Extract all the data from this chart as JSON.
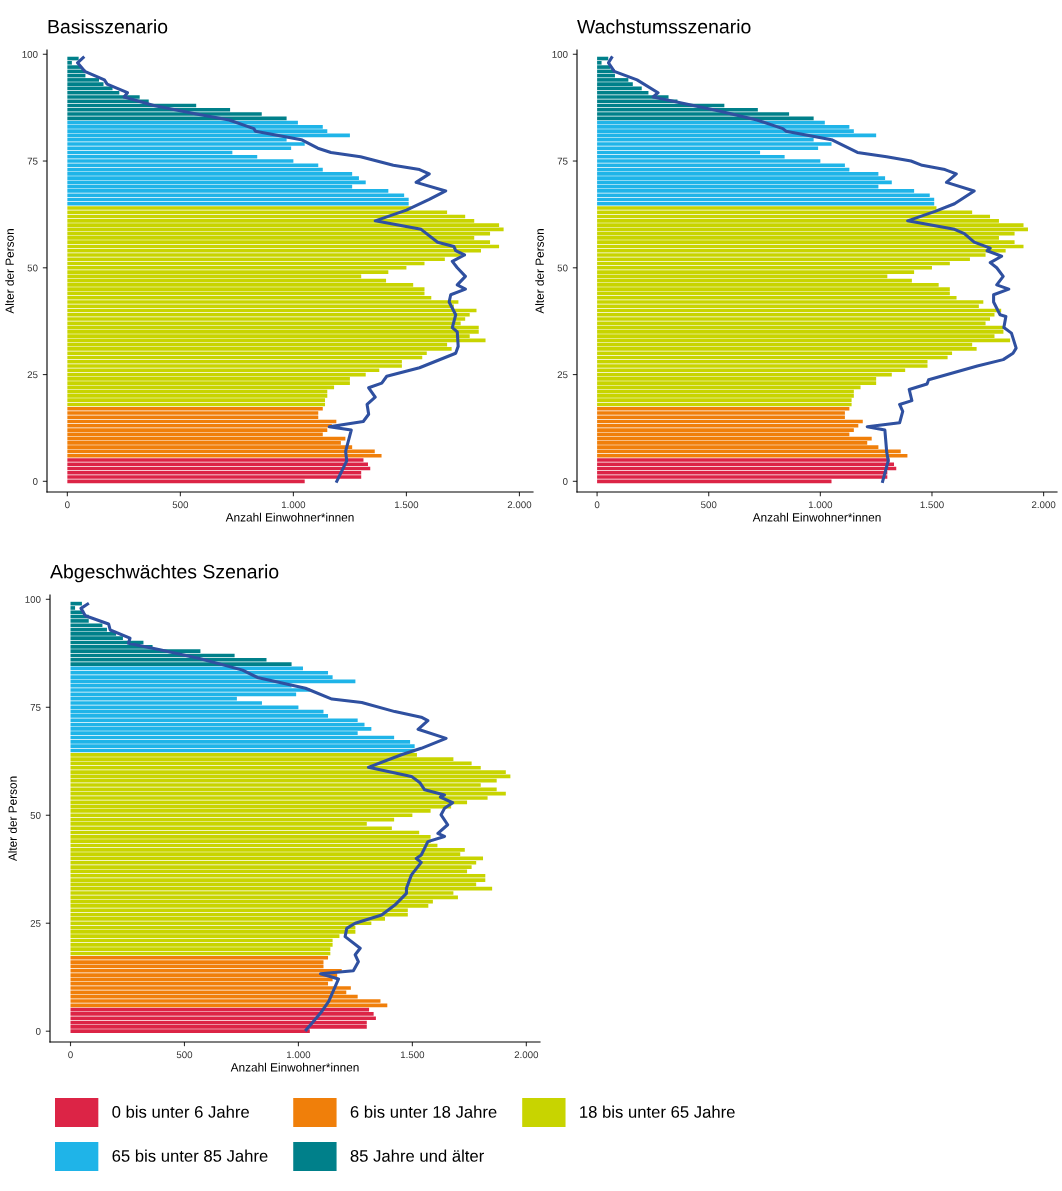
{
  "chart_data": [
    {
      "type": "bar",
      "orientation": "horizontal",
      "title": "Basisszenario",
      "xlabel": "Anzahl Einwohner*innen",
      "ylabel": "Alter der Person",
      "xlim": [
        -90,
        2060
      ],
      "xticks": [
        0,
        500,
        {
          "value": 1000,
          "label": "1.000"
        },
        {
          "value": 1500,
          "label": "1.500"
        },
        {
          "value": 2000,
          "label": "2.000"
        }
      ],
      "ylim": [
        -2.5,
        101
      ],
      "yticks": [
        0,
        25,
        50,
        75,
        100
      ],
      "grid": false,
      "legend": "bottom",
      "series": [
        {
          "name": "0 bis unter 6 Jahre",
          "color": "#dc2446",
          "x": [
            0,
            1,
            2,
            3,
            4,
            5
          ],
          "values": [
            1050,
            1300,
            1300,
            1340,
            1330,
            1310
          ]
        },
        {
          "name": "6 bis unter 18 Jahre",
          "color": "#f07f0a",
          "x": [
            6,
            7,
            8,
            9,
            10,
            11,
            12,
            13,
            14,
            15,
            16,
            17
          ],
          "values": [
            1390,
            1360,
            1260,
            1210,
            1230,
            1130,
            1150,
            1170,
            1190,
            1110,
            1110,
            1130
          ]
        },
        {
          "name": "18 bis unter 65 Jahre",
          "color": "#c8d400",
          "x": [
            18,
            19,
            20,
            21,
            22,
            23,
            24,
            25,
            26,
            27,
            28,
            29,
            30,
            31,
            32,
            33,
            34,
            35,
            36,
            37,
            38,
            39,
            40,
            41,
            42,
            43,
            44,
            45,
            46,
            47,
            48,
            49,
            50,
            51,
            52,
            53,
            54,
            55,
            56,
            57,
            58,
            59,
            60,
            61,
            62,
            63,
            64
          ],
          "values": [
            1140,
            1140,
            1150,
            1150,
            1180,
            1250,
            1250,
            1320,
            1380,
            1480,
            1480,
            1570,
            1590,
            1700,
            1680,
            1850,
            1780,
            1820,
            1820,
            1740,
            1760,
            1780,
            1810,
            1710,
            1730,
            1610,
            1580,
            1580,
            1530,
            1410,
            1300,
            1420,
            1500,
            1580,
            1670,
            1740,
            1830,
            1910,
            1870,
            1800,
            1870,
            1930,
            1910,
            1800,
            1760,
            1680,
            1520
          ]
        },
        {
          "name": "65 bis unter 85 Jahre",
          "color": "#1fb4e8",
          "x": [
            65,
            66,
            67,
            68,
            69,
            70,
            71,
            72,
            73,
            74,
            75,
            76,
            77,
            78,
            79,
            80,
            81,
            82,
            83,
            84
          ],
          "values": [
            1510,
            1510,
            1490,
            1420,
            1260,
            1320,
            1290,
            1260,
            1130,
            1110,
            1000,
            840,
            730,
            990,
            1050,
            970,
            1250,
            1150,
            1130,
            1020
          ]
        },
        {
          "name": "85 Jahre und älter",
          "color": "#00808a",
          "x": [
            85,
            86,
            87,
            88,
            89,
            90,
            91,
            92,
            93,
            94,
            95,
            96,
            97,
            98,
            99
          ],
          "values": [
            970,
            860,
            720,
            570,
            360,
            320,
            230,
            200,
            160,
            140,
            80,
            80,
            60,
            20,
            50
          ]
        },
        {
          "type": "line",
          "color": "#2f50a0",
          "x": [
            99.2,
            98,
            96,
            94,
            93,
            91,
            90,
            88,
            86,
            84.6,
            82.6,
            82,
            80,
            78,
            77,
            76,
            74,
            73,
            72,
            70,
            68,
            66,
            63.5,
            61,
            59,
            56,
            55,
            54,
            53,
            51.5,
            50,
            48,
            46,
            45,
            43.7,
            42,
            39,
            36,
            35,
            31.6,
            30,
            26.6,
            24.6,
            23,
            21.9,
            19.7,
            18,
            15.7,
            14,
            12.8,
            12,
            7,
            4.8,
            0
          ],
          "values": [
            70,
            45,
            77,
            164,
            176,
            266,
            251,
            382,
            571,
            716,
            825,
            832,
            1035,
            1108,
            1166,
            1297,
            1442,
            1558,
            1601,
            1543,
            1674,
            1601,
            1500,
            1362,
            1565,
            1638,
            1710,
            1718,
            1757,
            1703,
            1725,
            1761,
            1725,
            1761,
            1696,
            1689,
            1718,
            1703,
            1725,
            1729,
            1718,
            1558,
            1413,
            1391,
            1333,
            1362,
            1326,
            1333,
            1309,
            1159,
            1256,
            1231,
            1236,
            1192
          ]
        }
      ]
    },
    {
      "type": "bar",
      "orientation": "horizontal",
      "title": "Wachstumsszenario",
      "xlabel": "Anzahl Einwohner*innen",
      "ylabel": "Alter der Person",
      "xlim": [
        -90,
        2060
      ],
      "xticks": [
        0,
        500,
        {
          "value": 1000,
          "label": "1.000"
        },
        {
          "value": 1500,
          "label": "1.500"
        },
        {
          "value": 2000,
          "label": "2.000"
        }
      ],
      "ylim": [
        -2.5,
        101
      ],
      "yticks": [
        0,
        25,
        50,
        75,
        100
      ],
      "grid": false,
      "series": [
        {
          "color": "#dc2446",
          "x": [
            0,
            1,
            2,
            3,
            4,
            5
          ],
          "values": [
            1050,
            1300,
            1300,
            1340,
            1330,
            1310
          ]
        },
        {
          "color": "#f07f0a",
          "x": [
            6,
            7,
            8,
            9,
            10,
            11,
            12,
            13,
            14,
            15,
            16,
            17
          ],
          "values": [
            1390,
            1360,
            1260,
            1210,
            1230,
            1130,
            1150,
            1170,
            1190,
            1110,
            1110,
            1130
          ]
        },
        {
          "color": "#c8d400",
          "x": [
            18,
            19,
            20,
            21,
            22,
            23,
            24,
            25,
            26,
            27,
            28,
            29,
            30,
            31,
            32,
            33,
            34,
            35,
            36,
            37,
            38,
            39,
            40,
            41,
            42,
            43,
            44,
            45,
            46,
            47,
            48,
            49,
            50,
            51,
            52,
            53,
            54,
            55,
            56,
            57,
            58,
            59,
            60,
            61,
            62,
            63,
            64
          ],
          "values": [
            1140,
            1140,
            1150,
            1150,
            1180,
            1250,
            1250,
            1320,
            1380,
            1480,
            1480,
            1570,
            1590,
            1700,
            1680,
            1850,
            1780,
            1820,
            1820,
            1740,
            1760,
            1780,
            1810,
            1710,
            1730,
            1610,
            1580,
            1580,
            1530,
            1410,
            1300,
            1420,
            1500,
            1580,
            1670,
            1740,
            1830,
            1910,
            1870,
            1800,
            1870,
            1930,
            1910,
            1800,
            1760,
            1680,
            1520
          ]
        },
        {
          "color": "#1fb4e8",
          "x": [
            65,
            66,
            67,
            68,
            69,
            70,
            71,
            72,
            73,
            74,
            75,
            76,
            77,
            78,
            79,
            80,
            81,
            82,
            83,
            84
          ],
          "values": [
            1510,
            1510,
            1490,
            1420,
            1260,
            1320,
            1290,
            1260,
            1130,
            1110,
            1000,
            840,
            730,
            990,
            1050,
            970,
            1250,
            1150,
            1130,
            1020
          ]
        },
        {
          "color": "#00808a",
          "x": [
            85,
            86,
            87,
            88,
            89,
            90,
            91,
            92,
            93,
            94,
            95,
            96,
            97,
            98,
            99
          ],
          "values": [
            970,
            860,
            720,
            570,
            360,
            320,
            230,
            200,
            160,
            140,
            80,
            80,
            60,
            20,
            50
          ]
        },
        {
          "type": "line",
          "color": "#2f50a0",
          "x": [
            99.2,
            98,
            96,
            94,
            91,
            90,
            86.8,
            84.6,
            82.6,
            82,
            80,
            77,
            76,
            75,
            74,
            73,
            72,
            70,
            68,
            65,
            63.2,
            61,
            59,
            58,
            56,
            54.6,
            54,
            52.7,
            51.2,
            50,
            48,
            46,
            45,
            43.7,
            42,
            39,
            38.6,
            36,
            34.7,
            31.2,
            30,
            28.5,
            27,
            23.8,
            22.8,
            21.5,
            18.9,
            18,
            16.4,
            13.7,
            12.8,
            12,
            7,
            4.8,
            0
          ],
          "values": [
            65,
            51,
            77,
            179,
            273,
            251,
            542,
            716,
            832,
            846,
            1050,
            1166,
            1297,
            1406,
            1456,
            1558,
            1609,
            1565,
            1689,
            1601,
            1514,
            1391,
            1601,
            1645,
            1689,
            1761,
            1747,
            1812,
            1761,
            1790,
            1819,
            1790,
            1844,
            1776,
            1776,
            1805,
            1831,
            1822,
            1856,
            1877,
            1863,
            1819,
            1703,
            1485,
            1478,
            1398,
            1410,
            1355,
            1369,
            1355,
            1210,
            1289,
            1297,
            1304,
            1279
          ]
        }
      ]
    },
    {
      "type": "bar",
      "orientation": "horizontal",
      "title": "Abgeschwächtes Szenario",
      "xlabel": "Anzahl Einwohner*innen",
      "ylabel": "Alter der Person",
      "xlim": [
        -90,
        2060
      ],
      "xticks": [
        0,
        500,
        {
          "value": 1000,
          "label": "1.000"
        },
        {
          "value": 1500,
          "label": "1.500"
        },
        {
          "value": 2000,
          "label": "2.000"
        }
      ],
      "ylim": [
        -2.5,
        101
      ],
      "yticks": [
        0,
        25,
        50,
        75,
        100
      ],
      "grid": false,
      "series": [
        {
          "color": "#dc2446",
          "x": [
            0,
            1,
            2,
            3,
            4,
            5
          ],
          "values": [
            1050,
            1300,
            1300,
            1340,
            1330,
            1310
          ]
        },
        {
          "color": "#f07f0a",
          "x": [
            6,
            7,
            8,
            9,
            10,
            11,
            12,
            13,
            14,
            15,
            16,
            17
          ],
          "values": [
            1390,
            1360,
            1260,
            1210,
            1230,
            1130,
            1150,
            1170,
            1190,
            1110,
            1110,
            1130
          ]
        },
        {
          "color": "#c8d400",
          "x": [
            18,
            19,
            20,
            21,
            22,
            23,
            24,
            25,
            26,
            27,
            28,
            29,
            30,
            31,
            32,
            33,
            34,
            35,
            36,
            37,
            38,
            39,
            40,
            41,
            42,
            43,
            44,
            45,
            46,
            47,
            48,
            49,
            50,
            51,
            52,
            53,
            54,
            55,
            56,
            57,
            58,
            59,
            60,
            61,
            62,
            63,
            64
          ],
          "values": [
            1140,
            1140,
            1150,
            1150,
            1180,
            1250,
            1250,
            1320,
            1380,
            1480,
            1480,
            1570,
            1590,
            1700,
            1680,
            1850,
            1780,
            1820,
            1820,
            1740,
            1760,
            1780,
            1810,
            1710,
            1730,
            1610,
            1580,
            1580,
            1530,
            1410,
            1300,
            1420,
            1500,
            1580,
            1670,
            1740,
            1830,
            1910,
            1870,
            1800,
            1870,
            1930,
            1910,
            1800,
            1760,
            1680,
            1520
          ]
        },
        {
          "color": "#1fb4e8",
          "x": [
            65,
            66,
            67,
            68,
            69,
            70,
            71,
            72,
            73,
            74,
            75,
            76,
            77,
            78,
            79,
            80,
            81,
            82,
            83,
            84
          ],
          "values": [
            1510,
            1510,
            1490,
            1420,
            1260,
            1320,
            1290,
            1260,
            1130,
            1110,
            1000,
            840,
            730,
            990,
            1050,
            970,
            1250,
            1150,
            1130,
            1020
          ]
        },
        {
          "color": "#00808a",
          "x": [
            85,
            86,
            87,
            88,
            89,
            90,
            91,
            92,
            93,
            94,
            95,
            96,
            97,
            98,
            99
          ],
          "values": [
            970,
            860,
            720,
            570,
            360,
            320,
            230,
            200,
            160,
            140,
            80,
            80,
            60,
            20,
            50
          ]
        },
        {
          "type": "line",
          "color": "#2f50a0",
          "x": [
            98.9,
            97.9,
            96.2,
            94.3,
            92.9,
            91,
            89.8,
            88.3,
            86.3,
            83.6,
            81.9,
            79.4,
            76.9,
            76.1,
            74,
            72.7,
            71.9,
            69.9,
            67.8,
            65.5,
            64,
            61.1,
            59,
            57.6,
            55.9,
            54.7,
            54.2,
            52.9,
            51.6,
            50.1,
            47.8,
            45.8,
            45.1,
            43.9,
            40.8,
            40,
            39.1,
            36.2,
            33.1,
            31.9,
            29.2,
            26.9,
            25,
            23.8,
            21.9,
            19.2,
            17.7,
            16.1,
            14,
            13.3,
            12.1,
            6.9,
            4.2,
            1.9,
            0.3
          ],
          "values": [
            75,
            46,
            65,
            167,
            174,
            261,
            254,
            392,
            566,
            755,
            820,
            1031,
            1147,
            1278,
            1423,
            1539,
            1568,
            1525,
            1648,
            1539,
            1452,
            1307,
            1496,
            1532,
            1554,
            1641,
            1623,
            1677,
            1641,
            1626,
            1655,
            1612,
            1641,
            1568,
            1539,
            1517,
            1539,
            1496,
            1474,
            1474,
            1423,
            1365,
            1249,
            1212,
            1205,
            1271,
            1249,
            1263,
            1241,
            1097,
            1176,
            1133,
            1097,
            1060,
            1034
          ]
        }
      ]
    }
  ]
}
